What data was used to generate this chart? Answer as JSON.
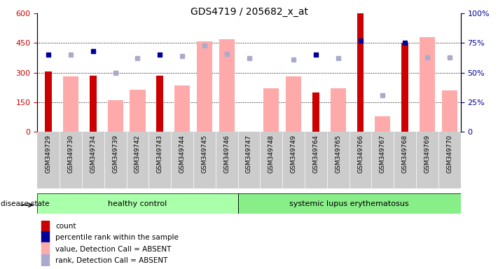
{
  "title": "GDS4719 / 205682_x_at",
  "samples": [
    "GSM349729",
    "GSM349730",
    "GSM349734",
    "GSM349739",
    "GSM349742",
    "GSM349743",
    "GSM349744",
    "GSM349745",
    "GSM349746",
    "GSM349747",
    "GSM349748",
    "GSM349749",
    "GSM349764",
    "GSM349765",
    "GSM349766",
    "GSM349767",
    "GSM349768",
    "GSM349769",
    "GSM349770"
  ],
  "healthy_count": 9,
  "lupus_count": 10,
  "count_values": [
    305,
    null,
    285,
    null,
    null,
    285,
    null,
    null,
    null,
    null,
    null,
    null,
    200,
    null,
    600,
    null,
    450,
    null,
    null
  ],
  "pink_bar_values": [
    null,
    280,
    null,
    160,
    215,
    null,
    235,
    460,
    470,
    null,
    220,
    280,
    null,
    220,
    null,
    80,
    null,
    480,
    210
  ],
  "dark_blue_dot_pct": [
    65,
    null,
    68,
    null,
    null,
    65,
    null,
    null,
    null,
    null,
    null,
    null,
    65,
    null,
    77,
    null,
    75,
    null,
    null
  ],
  "light_blue_dot_pct": [
    null,
    65,
    null,
    50,
    62,
    null,
    64,
    73,
    66,
    62,
    null,
    61,
    null,
    62,
    null,
    31,
    null,
    63,
    63
  ],
  "left_ylim": [
    0,
    600
  ],
  "right_ylim": [
    0,
    100
  ],
  "left_yticks": [
    0,
    150,
    300,
    450,
    600
  ],
  "right_yticks": [
    0,
    25,
    50,
    75,
    100
  ],
  "right_yticklabels": [
    "0",
    "25%",
    "50%",
    "75%",
    "100%"
  ],
  "count_color": "#cc0000",
  "pink_color": "#ffaaaa",
  "dark_blue_color": "#000099",
  "light_blue_color": "#aaaacc",
  "group_healthy_color": "#aaffaa",
  "group_lupus_color": "#88ee88",
  "xtick_bg_color": "#cccccc",
  "disease_state_label": "disease state"
}
